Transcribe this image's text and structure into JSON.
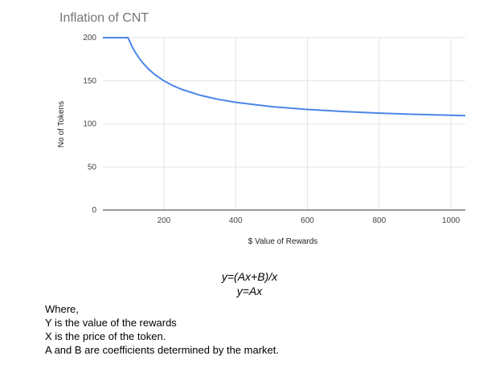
{
  "chart_data": {
    "type": "line",
    "title": "Inflation of CNT",
    "xlabel": "$ Value of Rewards",
    "ylabel": "No of Tokens",
    "xlim": [
      30,
      1040
    ],
    "ylim": [
      0,
      200
    ],
    "x_ticks": [
      200,
      400,
      600,
      800,
      1000
    ],
    "y_ticks": [
      0,
      50,
      100,
      150,
      200
    ],
    "grid": true,
    "legend": "none",
    "series": [
      {
        "color": "#4a86e8",
        "x": [
          30,
          100,
          110,
          120,
          130,
          140,
          150,
          160,
          175,
          200,
          225,
          250,
          300,
          350,
          400,
          500,
          600,
          700,
          800,
          900,
          1000,
          1040
        ],
        "y": [
          200,
          200,
          190.9,
          183.3,
          176.9,
          171.4,
          166.7,
          162.5,
          157.1,
          150,
          144.4,
          140,
          133.3,
          128.6,
          125,
          120,
          116.7,
          114.3,
          112.5,
          111.1,
          110,
          109.6
        ]
      }
    ]
  },
  "formulas": {
    "line1": "y=(Ax+B)/x",
    "line2": "y=Ax"
  },
  "notes": {
    "line1": "Where,",
    "line2": "Y is the value of the rewards",
    "line3": "X is the price of the token.",
    "line4": "A and B are coefficients determined by the market."
  }
}
